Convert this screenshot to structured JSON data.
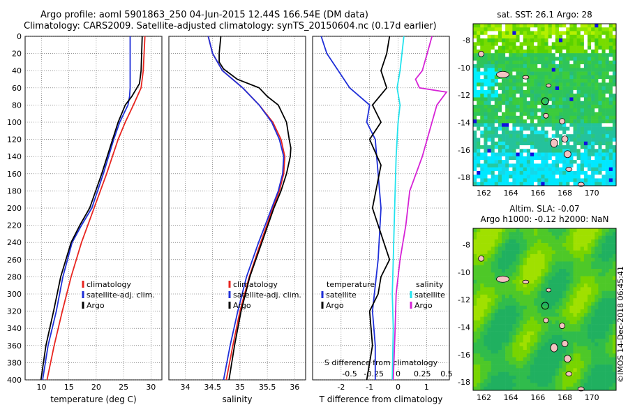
{
  "title": {
    "line1": "Argo profile: aoml 5901863_250 04-Jun-2015 12.44S 166.54E (DM data)",
    "line2": "Climatology: CARS2009. Satellite-adjusted climatology: synTS_20150604.nc (0.17d earlier)"
  },
  "colors": {
    "climatology": "#e8251f",
    "satellite": "#1f2fd8",
    "argo": "#000000",
    "sat_salinity": "#22e3ee",
    "argo_salinity": "#d623d6"
  },
  "chart_data": [
    {
      "type": "line",
      "name": "temperature-profile",
      "xlabel": "temperature (deg C)",
      "ylabel": "",
      "xlim": [
        7,
        32
      ],
      "ylim": [
        400,
        0
      ],
      "x_ticks": [
        10,
        15,
        20,
        25,
        30
      ],
      "y_ticks": [
        0,
        20,
        40,
        60,
        80,
        100,
        120,
        140,
        160,
        180,
        200,
        220,
        240,
        260,
        280,
        300,
        320,
        340,
        360,
        380,
        400
      ],
      "legend": {
        "position": "middle-right",
        "entries": [
          "climatology",
          "satellite-adj. clim.",
          "Argo"
        ]
      },
      "series": [
        {
          "name": "climatology",
          "depth": [
            0,
            40,
            60,
            80,
            100,
            120,
            160,
            200,
            240,
            280,
            320,
            360,
            400
          ],
          "values": [
            28.9,
            28.6,
            28.2,
            26.8,
            25.3,
            24.0,
            21.9,
            19.6,
            17.3,
            15.4,
            13.8,
            12.3,
            11.0
          ]
        },
        {
          "name": "satellite-adj. clim.",
          "depth": [
            0,
            40,
            60,
            70,
            80,
            100,
            120,
            160,
            200,
            220,
            240,
            280,
            320,
            360,
            400
          ],
          "values": [
            26.2,
            26.2,
            26.2,
            26.1,
            25.8,
            24.3,
            23.2,
            21.3,
            19.2,
            17.3,
            15.6,
            13.9,
            12.7,
            11.2,
            10.2
          ]
        },
        {
          "name": "Argo",
          "depth": [
            0,
            40,
            55,
            70,
            80,
            100,
            120,
            160,
            200,
            220,
            240,
            280,
            320,
            360,
            400
          ],
          "values": [
            28.4,
            28.2,
            27.9,
            26.5,
            25.3,
            24.0,
            23.0,
            21.0,
            18.8,
            17.0,
            15.4,
            13.5,
            12.2,
            10.8,
            9.9
          ]
        }
      ]
    },
    {
      "type": "line",
      "name": "salinity-profile",
      "xlabel": "salinity",
      "ylabel": "",
      "xlim": [
        33.7,
        36.2
      ],
      "ylim": [
        400,
        0
      ],
      "x_ticks": [
        34,
        34.5,
        35,
        35.5,
        36
      ],
      "legend": {
        "position": "middle-right",
        "entries": [
          "climatology",
          "satellite-adj. clim.",
          "Argo"
        ]
      },
      "series": [
        {
          "name": "climatology",
          "depth": [
            0,
            20,
            40,
            60,
            80,
            100,
            120,
            140,
            160,
            180,
            200,
            240,
            280,
            320,
            360,
            400
          ],
          "values": [
            34.42,
            34.5,
            34.68,
            35.05,
            35.35,
            35.6,
            35.75,
            35.82,
            35.8,
            35.72,
            35.6,
            35.38,
            35.17,
            35.0,
            34.87,
            34.75
          ]
        },
        {
          "name": "satellite-adj. clim.",
          "depth": [
            0,
            20,
            40,
            60,
            80,
            100,
            120,
            140,
            160,
            180,
            200,
            240,
            280,
            320,
            360,
            400
          ],
          "values": [
            34.42,
            34.5,
            34.68,
            35.05,
            35.35,
            35.58,
            35.72,
            35.8,
            35.78,
            35.7,
            35.58,
            35.34,
            35.12,
            34.96,
            34.82,
            34.7
          ]
        },
        {
          "name": "Argo",
          "depth": [
            0,
            20,
            30,
            38,
            50,
            60,
            70,
            80,
            100,
            120,
            130,
            140,
            160,
            180,
            200,
            240,
            280,
            320,
            360,
            400
          ],
          "values": [
            34.65,
            34.62,
            34.62,
            34.7,
            34.95,
            35.35,
            35.5,
            35.7,
            35.85,
            35.9,
            35.93,
            35.92,
            35.85,
            35.75,
            35.62,
            35.4,
            35.18,
            35.02,
            34.9,
            34.8
          ]
        }
      ]
    },
    {
      "type": "line",
      "name": "difference-profile",
      "xlabel": "T difference from climatology",
      "x2label": "S difference from climatology",
      "xlim": [
        -3,
        1.8
      ],
      "ylim": [
        400,
        0
      ],
      "x_ticks": [
        -2,
        -1,
        0,
        1
      ],
      "x2_ticks": [
        -0.5,
        -0.25,
        0,
        0.25,
        0.5
      ],
      "legend": {
        "position": "lower",
        "temperature_title": "temperature",
        "salinity_title": "salinity",
        "entries": [
          "satellite",
          "Argo",
          "satellite",
          "Argo"
        ]
      },
      "series": [
        {
          "name": "temperature satellite",
          "depth": [
            0,
            20,
            40,
            60,
            80,
            100,
            120,
            160,
            200,
            260,
            320,
            360,
            400
          ],
          "values": [
            -2.7,
            -2.5,
            -2.1,
            -1.7,
            -1.0,
            -1.1,
            -0.8,
            -0.7,
            -0.6,
            -0.7,
            -0.9,
            -0.8,
            -0.8
          ]
        },
        {
          "name": "temperature Argo",
          "depth": [
            0,
            20,
            40,
            60,
            80,
            100,
            120,
            150,
            200,
            240,
            260,
            280,
            300,
            320,
            360,
            400
          ],
          "values": [
            -0.3,
            -0.4,
            -0.6,
            -0.4,
            -0.9,
            -0.6,
            -1.0,
            -0.6,
            -0.9,
            -0.5,
            -0.3,
            -0.6,
            -0.7,
            -1.0,
            -0.9,
            -1.1
          ]
        },
        {
          "name": "salinity satellite",
          "depth": [
            0,
            40,
            60,
            80,
            100,
            140,
            180,
            220,
            260,
            300,
            340,
            400
          ],
          "values": [
            0.06,
            0.02,
            -0.01,
            0.02,
            0.0,
            -0.02,
            -0.03,
            -0.04,
            -0.05,
            -0.06,
            -0.05,
            -0.06
          ]
        },
        {
          "name": "salinity Argo",
          "depth": [
            0,
            20,
            40,
            50,
            60,
            65,
            80,
            100,
            140,
            180,
            220,
            260,
            300,
            340,
            400
          ],
          "values": [
            0.35,
            0.3,
            0.25,
            0.18,
            0.22,
            0.5,
            0.4,
            0.35,
            0.25,
            0.12,
            0.08,
            0.02,
            -0.02,
            -0.03,
            -0.05
          ]
        }
      ]
    },
    {
      "type": "heatmap",
      "name": "sst-map",
      "title": "sat. SST: 26.1 Argo: 28",
      "xlim": [
        161.2,
        171.8
      ],
      "ylim": [
        -18.6,
        -6.8
      ],
      "x_ticks": [
        162,
        164,
        166,
        168,
        170
      ],
      "y_ticks": [
        -8,
        -10,
        -12,
        -14,
        -16,
        -18
      ]
    },
    {
      "type": "heatmap",
      "name": "sla-map",
      "title": "Altim. SLA: -0.07",
      "subtitle": "Argo h1000: -0.12 h2000: NaN",
      "xlim": [
        161.2,
        171.8
      ],
      "ylim": [
        -18.6,
        -6.8
      ],
      "x_ticks": [
        162,
        164,
        166,
        168,
        170
      ],
      "y_ticks": [
        -8,
        -10,
        -12,
        -14,
        -16,
        -18
      ]
    }
  ],
  "watermark": "©IMOS 14-Dec-2018 06:45:41"
}
